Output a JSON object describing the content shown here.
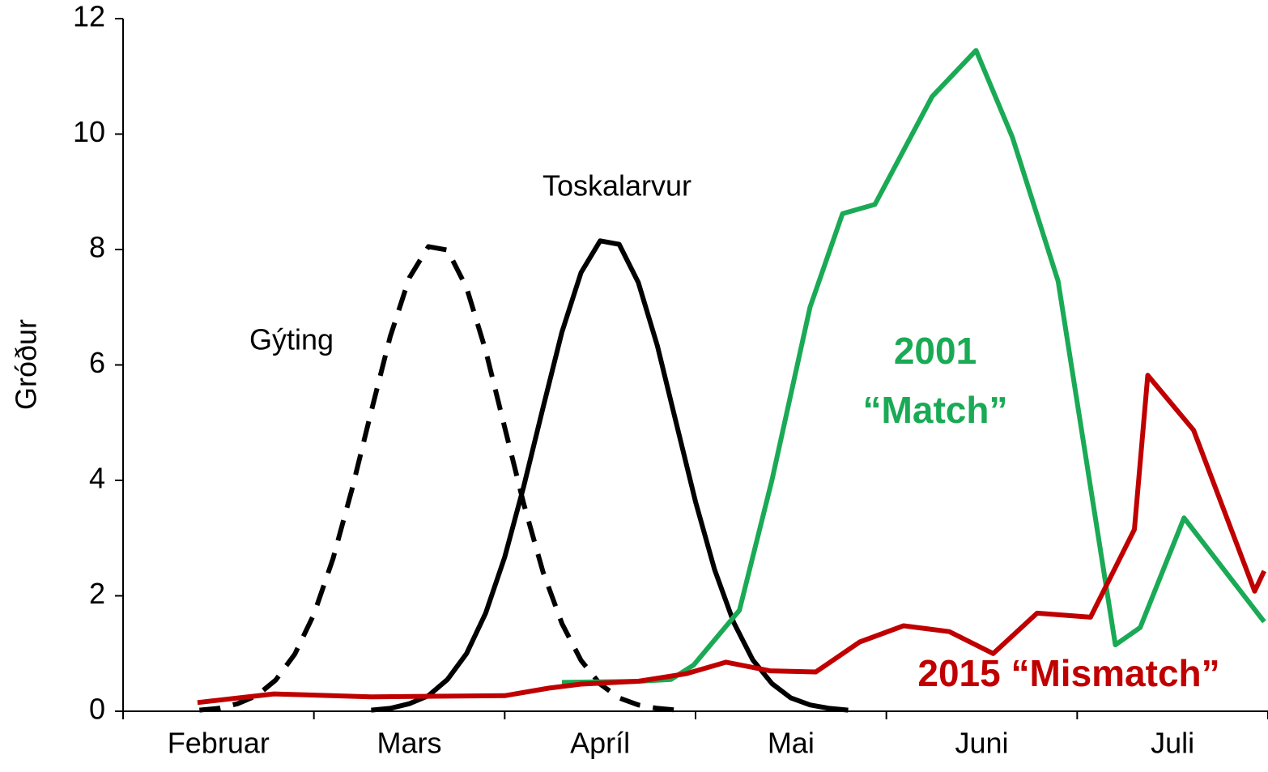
{
  "chart_data": {
    "type": "line",
    "ylabel": "Gróður",
    "categories": [
      "Februar",
      "Mars",
      "Apríl",
      "Mai",
      "Juni",
      "Juli"
    ],
    "xlim": [
      0,
      6
    ],
    "ylim": [
      0,
      12
    ],
    "yticks": [
      0,
      2,
      4,
      6,
      8,
      10,
      12
    ],
    "series": [
      {
        "name": "Gýting",
        "color": "#000000",
        "dashed": true,
        "x": [
          0.4,
          0.5,
          0.6,
          0.7,
          0.8,
          0.9,
          1.0,
          1.1,
          1.2,
          1.3,
          1.4,
          1.5,
          1.6,
          1.7,
          1.8,
          1.9,
          2.0,
          2.1,
          2.2,
          2.3,
          2.4,
          2.5,
          2.6,
          2.7,
          2.8,
          2.9
        ],
        "values": [
          0.02,
          0.05,
          0.13,
          0.27,
          0.54,
          0.99,
          1.68,
          2.64,
          3.85,
          5.19,
          6.49,
          7.51,
          8.05,
          7.99,
          7.34,
          6.25,
          4.92,
          3.59,
          2.42,
          1.52,
          0.88,
          0.47,
          0.23,
          0.11,
          0.05,
          0.02
        ]
      },
      {
        "name": "Toskalarvur",
        "color": "#000000",
        "dashed": false,
        "x": [
          1.3,
          1.4,
          1.5,
          1.6,
          1.7,
          1.8,
          1.9,
          2.0,
          2.1,
          2.2,
          2.3,
          2.4,
          2.5,
          2.6,
          2.7,
          2.8,
          2.9,
          3.0,
          3.1,
          3.2,
          3.3,
          3.4,
          3.5,
          3.6,
          3.7,
          3.8
        ],
        "values": [
          0.02,
          0.05,
          0.13,
          0.27,
          0.55,
          1.0,
          1.7,
          2.67,
          3.9,
          5.25,
          6.57,
          7.6,
          8.15,
          8.09,
          7.43,
          6.33,
          4.98,
          3.63,
          2.45,
          1.54,
          0.89,
          0.48,
          0.23,
          0.11,
          0.05,
          0.02
        ]
      },
      {
        "name": "2001",
        "color": "#1aaa55",
        "dashed": false,
        "x": [
          2.3,
          2.7,
          2.87,
          2.99,
          3.23,
          3.4,
          3.6,
          3.77,
          3.94,
          4.24,
          4.47,
          4.66,
          4.9,
          5.2,
          5.33,
          5.56,
          5.98
        ],
        "values": [
          0.5,
          0.52,
          0.55,
          0.8,
          1.75,
          4.0,
          7.0,
          8.62,
          8.78,
          10.65,
          11.45,
          9.95,
          7.45,
          1.15,
          1.45,
          3.35,
          1.55
        ]
      },
      {
        "name": "2015",
        "color": "#c00000",
        "dashed": false,
        "x": [
          0.39,
          0.79,
          1.3,
          2.0,
          2.23,
          2.4,
          2.7,
          2.95,
          3.16,
          3.39,
          3.63,
          3.86,
          4.09,
          4.33,
          4.56,
          4.79,
          5.07,
          5.3,
          5.37,
          5.61,
          5.93,
          5.98
        ],
        "values": [
          0.15,
          0.3,
          0.25,
          0.27,
          0.4,
          0.47,
          0.52,
          0.65,
          0.85,
          0.7,
          0.68,
          1.2,
          1.48,
          1.38,
          1.0,
          1.7,
          1.63,
          3.15,
          5.82,
          4.87,
          2.08,
          2.43
        ]
      }
    ],
    "annotations": [
      {
        "text": "Gýting",
        "color": "#000000",
        "bold": false
      },
      {
        "text": "Toskalarvur",
        "color": "#000000",
        "bold": false
      },
      {
        "text": "2001",
        "color": "#1aaa55",
        "bold": true
      },
      {
        "text": "“Match”",
        "color": "#1aaa55",
        "bold": true
      },
      {
        "text": "2015 “Mismatch”",
        "color": "#c00000",
        "bold": true
      }
    ]
  }
}
